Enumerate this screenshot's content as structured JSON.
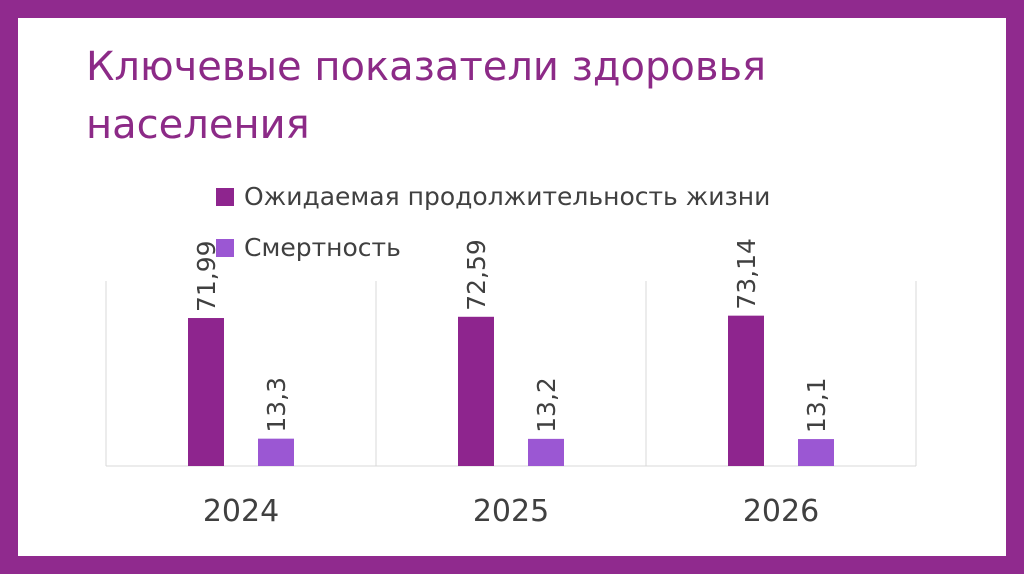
{
  "title": "Ключевые показатели здоровья населения",
  "colors": {
    "frame": "#902a8e",
    "series1": "#8e258e",
    "series2": "#9b57d3",
    "title": "#8c2a87",
    "grid": "#d9d9d9"
  },
  "chart_data": {
    "type": "bar",
    "categories": [
      "2024",
      "2025",
      "2026"
    ],
    "series": [
      {
        "name": "Ожидаемая продолжительность жизни",
        "values": [
          71.99,
          72.59,
          73.14
        ],
        "labels": [
          "71,99",
          "72,59",
          "73,14"
        ]
      },
      {
        "name": "Смертность",
        "values": [
          13.3,
          13.2,
          13.1
        ],
        "labels": [
          "13,3",
          "13,2",
          "13,1"
        ]
      }
    ],
    "ylim": [
      0,
      90
    ],
    "grid": true,
    "legend_position": "top"
  }
}
